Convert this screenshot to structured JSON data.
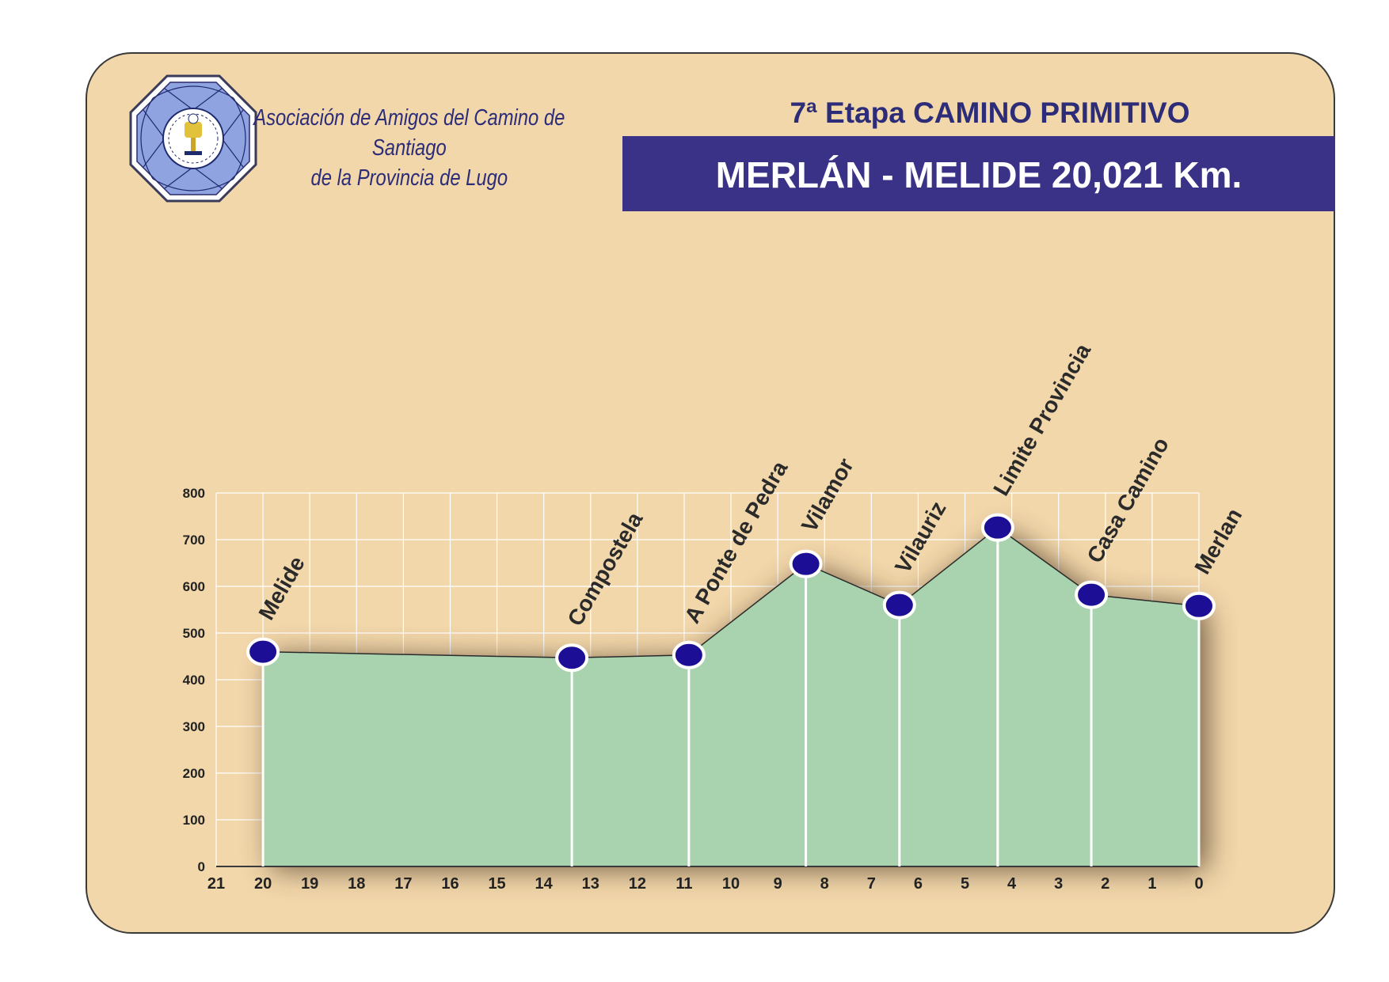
{
  "header": {
    "association_line1": "Asociación de Amigos del Camino de Santiago",
    "association_line2": "de la Provincia de Lugo",
    "stage_title": "7ª Etapa CAMINO PRIMITIVO",
    "route": "MERLÁN - MELIDE 20,021 Km."
  },
  "colors": {
    "card_bg": "#f2d7ab",
    "banner_bg": "#3a3286",
    "title_text": "#2c2c78",
    "area_fill": "#a9d3ae",
    "marker": "#1c0f96"
  },
  "chart_data": {
    "type": "area",
    "title": "",
    "xlabel": "",
    "ylabel": "",
    "xlim": [
      21,
      0
    ],
    "ylim": [
      0,
      800
    ],
    "x_ticks": [
      "21",
      "20",
      "19",
      "18",
      "17",
      "16",
      "15",
      "14",
      "13",
      "12",
      "11",
      "10",
      "9",
      "8",
      "7",
      "6",
      "5",
      "4",
      "3",
      "2",
      "1",
      "0"
    ],
    "y_ticks": [
      "0",
      "100",
      "200",
      "300",
      "400",
      "500",
      "600",
      "700",
      "800"
    ],
    "grid": true,
    "points": [
      {
        "label": "Melide",
        "x": 20.0,
        "y": 460
      },
      {
        "label": "Compostela",
        "x": 13.4,
        "y": 447
      },
      {
        "label": "A Ponte de Pedra",
        "x": 10.9,
        "y": 453
      },
      {
        "label": "Vilamor",
        "x": 8.4,
        "y": 648
      },
      {
        "label": "Vilauriz",
        "x": 6.4,
        "y": 560
      },
      {
        "label": "Limite Provincia",
        "x": 4.3,
        "y": 726
      },
      {
        "label": "Casa Camino",
        "x": 2.3,
        "y": 582
      },
      {
        "label": "Merlan",
        "x": 0.0,
        "y": 558
      }
    ]
  }
}
